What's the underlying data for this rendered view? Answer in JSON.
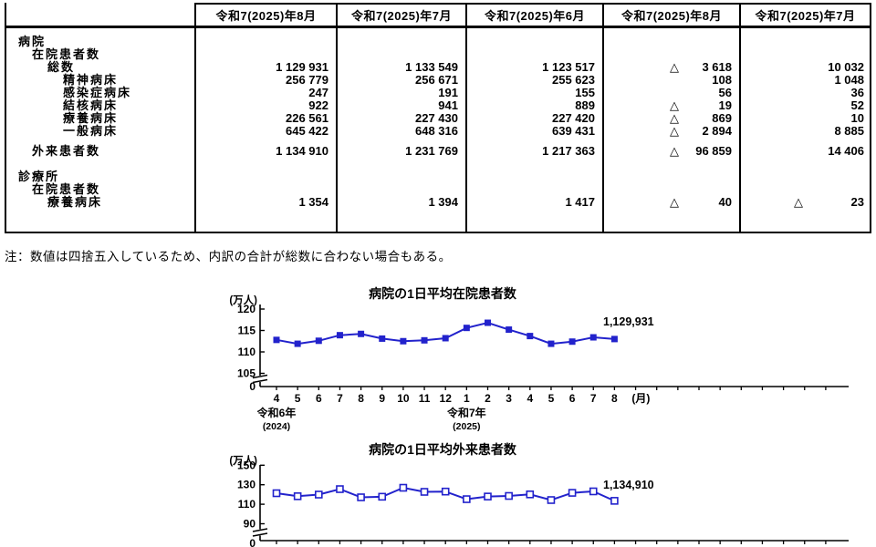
{
  "table": {
    "header": [
      "令和7(2025)年8月",
      "令和7(2025)年7月",
      "令和7(2025)年6月",
      "令和7(2025)年8月",
      "令和7(2025)年7月"
    ],
    "rows": [
      {
        "label": "病院",
        "indent": 1,
        "gap": 0,
        "cells": [
          "",
          "",
          "",
          "",
          ""
        ]
      },
      {
        "label": "在院患者数",
        "indent": 2,
        "gap": 0,
        "cells": [
          "",
          "",
          "",
          "",
          ""
        ]
      },
      {
        "label": "総数",
        "indent": 3,
        "gap": 0,
        "cells": [
          "1 129 931",
          "1 133 549",
          "1 123 517",
          "△3 618",
          "10 032"
        ]
      },
      {
        "label": "精神病床",
        "indent": 4,
        "gap": 0,
        "cells": [
          "256 779",
          "256 671",
          "255 623",
          "108",
          "1 048"
        ]
      },
      {
        "label": "感染症病床",
        "indent": 4,
        "gap": 0,
        "cells": [
          "247",
          "191",
          "155",
          "56",
          "36"
        ]
      },
      {
        "label": "結核病床",
        "indent": 4,
        "gap": 0,
        "cells": [
          "922",
          "941",
          "889",
          "△19",
          "52"
        ]
      },
      {
        "label": "療養病床",
        "indent": 4,
        "gap": 0,
        "cells": [
          "226 561",
          "227 430",
          "227 420",
          "△869",
          "10"
        ]
      },
      {
        "label": "一般病床",
        "indent": 4,
        "gap": 0,
        "cells": [
          "645 422",
          "648 316",
          "639 431",
          "△2 894",
          "8 885"
        ]
      },
      {
        "label": "外来患者数",
        "indent": 2,
        "gap": 8,
        "cells": [
          "1 134 910",
          "1 231 769",
          "1 217 363",
          "△96 859",
          "14 406"
        ]
      },
      {
        "label": "診療所",
        "indent": 1,
        "gap": 14,
        "cells": [
          "",
          "",
          "",
          "",
          ""
        ]
      },
      {
        "label": "在院患者数",
        "indent": 2,
        "gap": 0,
        "cells": [
          "",
          "",
          "",
          "",
          ""
        ]
      },
      {
        "label": "療養病床",
        "indent": 3,
        "gap": 0,
        "cells": [
          "1 354",
          "1 394",
          "1 417",
          "△40",
          "△23"
        ]
      }
    ]
  },
  "note": "注：数値は四捨五入しているため、内訳の合計が総数に合わない場合もある。",
  "chart_data": [
    {
      "type": "line",
      "title": "病院の1日平均在院患者数",
      "y_unit": "(万人)",
      "x_unit": "(月)",
      "yticks": [
        120,
        115,
        110,
        105
      ],
      "y_zero": "0",
      "axis_break": true,
      "ylim": [
        105,
        120
      ],
      "x_labels": [
        "4",
        "5",
        "6",
        "7",
        "8",
        "9",
        "10",
        "11",
        "12",
        "1",
        "2",
        "3",
        "4",
        "5",
        "6",
        "7",
        "8"
      ],
      "era_labels": [
        {
          "name": "令和6年",
          "year": "(2024)",
          "at": 0
        },
        {
          "name": "令和7年",
          "year": "(2025)",
          "at": 9
        }
      ],
      "values": [
        112.8,
        111.9,
        112.6,
        113.9,
        114.2,
        113.1,
        112.5,
        112.7,
        113.2,
        115.6,
        116.8,
        115.2,
        113.7,
        111.9,
        112.4,
        113.4,
        113.0
      ],
      "annotation": "1,129,931",
      "marker": "filled",
      "color": "#2222cc",
      "legend": "none",
      "grid": false
    },
    {
      "type": "line",
      "title": "病院の1日平均外来患者数",
      "y_unit": "(万人)",
      "yticks": [
        150,
        130,
        110,
        90
      ],
      "y_zero": "0",
      "axis_break": true,
      "ylim": [
        90,
        150
      ],
      "x_labels": [],
      "values": [
        121.3,
        118.2,
        119.9,
        125.5,
        117.1,
        117.7,
        126.9,
        122.7,
        123.0,
        115.2,
        117.9,
        118.5,
        120.1,
        114.3,
        121.7,
        123.2,
        113.5
      ],
      "annotation": "1,134,910",
      "marker": "open",
      "color": "#2222cc",
      "legend": "none",
      "grid": false
    }
  ]
}
